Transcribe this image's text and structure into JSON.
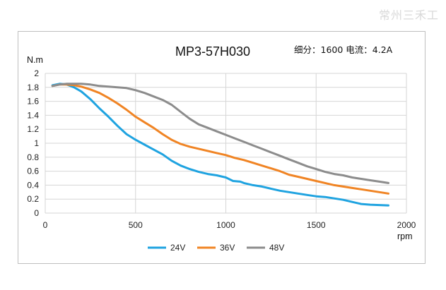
{
  "watermark": "常州三禾工",
  "chart_data": {
    "type": "line",
    "title": "MP3-57H030",
    "note": "细分：1600 电流：4.2A",
    "ylabel": "N.m",
    "xlabel": "rpm",
    "xlim": [
      0,
      2000
    ],
    "ylim": [
      0,
      2
    ],
    "xticks": [
      0,
      500,
      1000,
      1500,
      2000
    ],
    "yticks": [
      0,
      0.2,
      0.4,
      0.6,
      0.8,
      1,
      1.2,
      1.4,
      1.6,
      1.8,
      2
    ],
    "grid": true,
    "legend_position": "bottom",
    "series": [
      {
        "name": "24V",
        "color": "#1fa3e0",
        "x": [
          40,
          80,
          120,
          160,
          200,
          250,
          300,
          350,
          400,
          450,
          500,
          550,
          600,
          650,
          700,
          750,
          800,
          850,
          900,
          950,
          1000,
          1040,
          1080,
          1100,
          1150,
          1200,
          1250,
          1300,
          1350,
          1400,
          1450,
          1500,
          1550,
          1600,
          1650,
          1700,
          1750,
          1800,
          1850,
          1900
        ],
        "y": [
          1.83,
          1.85,
          1.84,
          1.8,
          1.74,
          1.63,
          1.5,
          1.38,
          1.25,
          1.13,
          1.05,
          0.98,
          0.91,
          0.84,
          0.75,
          0.68,
          0.63,
          0.59,
          0.56,
          0.54,
          0.51,
          0.46,
          0.45,
          0.43,
          0.4,
          0.38,
          0.35,
          0.32,
          0.3,
          0.28,
          0.26,
          0.24,
          0.23,
          0.21,
          0.19,
          0.16,
          0.13,
          0.12,
          0.115,
          0.11
        ]
      },
      {
        "name": "36V",
        "color": "#f08424",
        "x": [
          40,
          80,
          120,
          160,
          200,
          250,
          300,
          350,
          400,
          450,
          500,
          550,
          600,
          650,
          700,
          750,
          800,
          850,
          900,
          950,
          1000,
          1050,
          1100,
          1150,
          1200,
          1250,
          1300,
          1350,
          1400,
          1450,
          1500,
          1550,
          1600,
          1650,
          1700,
          1750,
          1800,
          1850,
          1900
        ],
        "y": [
          1.82,
          1.84,
          1.84,
          1.83,
          1.81,
          1.77,
          1.72,
          1.65,
          1.57,
          1.48,
          1.38,
          1.3,
          1.22,
          1.13,
          1.05,
          0.99,
          0.95,
          0.92,
          0.89,
          0.86,
          0.83,
          0.79,
          0.76,
          0.72,
          0.68,
          0.64,
          0.6,
          0.55,
          0.52,
          0.49,
          0.46,
          0.43,
          0.4,
          0.38,
          0.36,
          0.34,
          0.32,
          0.3,
          0.28
        ]
      },
      {
        "name": "48V",
        "color": "#8c8c8c",
        "x": [
          40,
          80,
          120,
          160,
          200,
          250,
          300,
          350,
          400,
          450,
          500,
          550,
          600,
          650,
          700,
          750,
          800,
          850,
          900,
          950,
          1000,
          1050,
          1100,
          1150,
          1200,
          1250,
          1300,
          1350,
          1400,
          1450,
          1500,
          1550,
          1600,
          1650,
          1700,
          1750,
          1800,
          1850,
          1900
        ],
        "y": [
          1.82,
          1.84,
          1.85,
          1.85,
          1.85,
          1.84,
          1.82,
          1.81,
          1.8,
          1.79,
          1.76,
          1.72,
          1.67,
          1.62,
          1.55,
          1.45,
          1.35,
          1.27,
          1.22,
          1.17,
          1.12,
          1.07,
          1.02,
          0.97,
          0.92,
          0.87,
          0.82,
          0.77,
          0.72,
          0.67,
          0.63,
          0.59,
          0.56,
          0.54,
          0.51,
          0.49,
          0.47,
          0.45,
          0.43
        ]
      }
    ]
  }
}
